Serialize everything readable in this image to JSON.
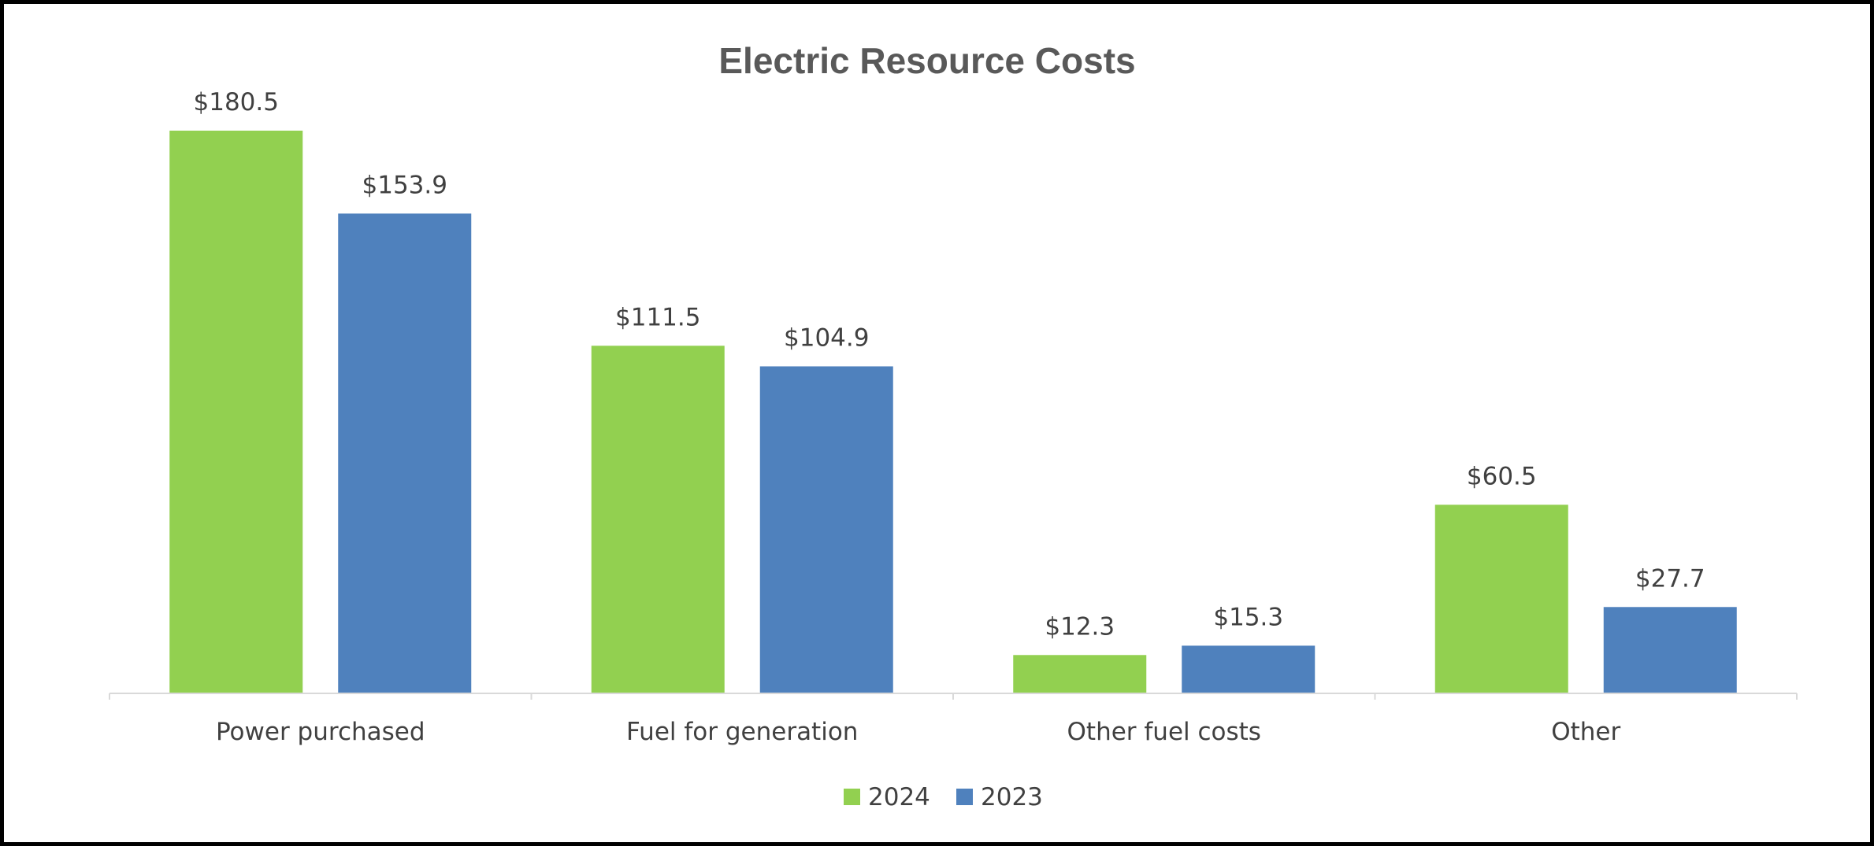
{
  "chart_data": {
    "type": "bar",
    "title": "Electric Resource Costs",
    "categories": [
      "Power purchased",
      "Fuel for generation",
      "Other fuel costs",
      "Other"
    ],
    "series": [
      {
        "name": "2024",
        "color": "#92d050",
        "values": [
          180.5,
          111.5,
          12.3,
          60.5
        ],
        "labels": [
          "$180.5",
          "$111.5",
          "$12.3",
          "$60.5"
        ]
      },
      {
        "name": "2023",
        "color": "#4f81bd",
        "values": [
          153.9,
          104.9,
          15.3,
          27.7
        ],
        "labels": [
          "$153.9",
          "$104.9",
          "$15.3",
          "$27.7"
        ]
      }
    ],
    "xlabel": "",
    "ylabel": "",
    "ylim": [
      0,
      180.5
    ],
    "grid": false,
    "legend": "bottom-center"
  }
}
